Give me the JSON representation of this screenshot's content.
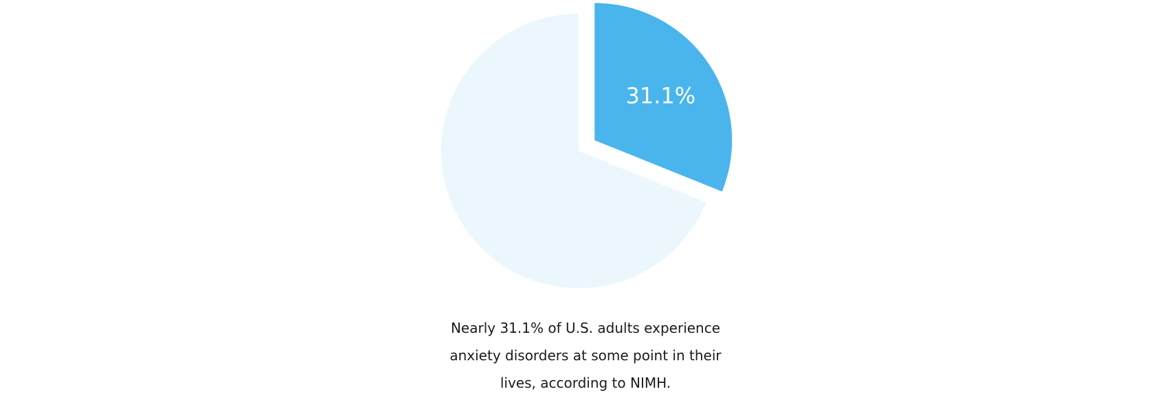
{
  "chart_data": {
    "type": "pie",
    "slices": [
      {
        "value": 31.1,
        "label": "31.1%",
        "color": "#4ab5ec",
        "exploded": true
      },
      {
        "value": 68.9,
        "label": "",
        "color": "#ebf7fc",
        "exploded": false
      }
    ],
    "start_angle": "12 o'clock, clockwise",
    "legend": "none"
  },
  "caption": "Nearly 31.1% of U.S. adults experience anxiety disorders at some point in their lives, according to NIMH."
}
